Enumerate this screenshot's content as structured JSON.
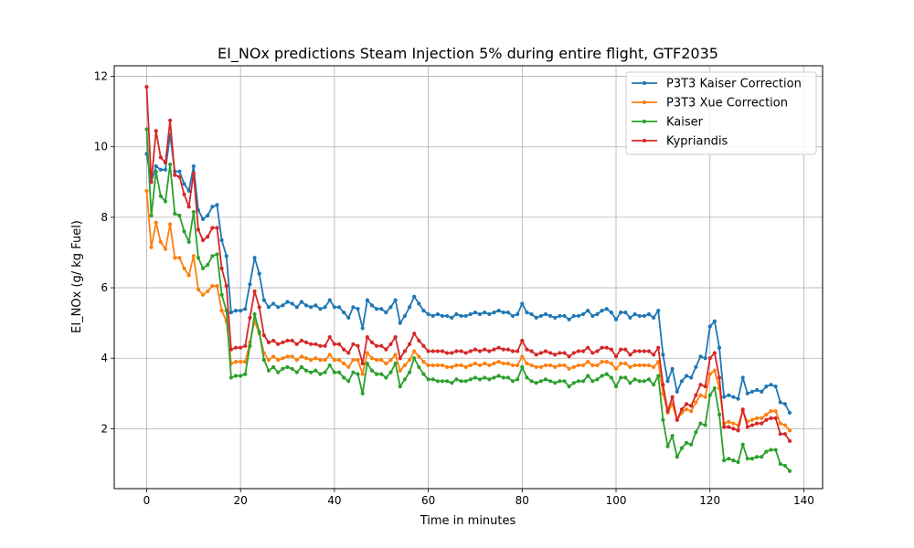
{
  "chart_data": {
    "type": "line",
    "title": "EI_NOx predictions Steam Injection 5% during entire flight, GTF2035",
    "xlabel": "Time in minutes",
    "ylabel": "EI_NOx (g/ kg Fuel)",
    "xlim": [
      -6.9,
      144.0
    ],
    "ylim": [
      0.3,
      12.3
    ],
    "xticks": [
      0,
      20,
      40,
      60,
      80,
      100,
      120,
      140
    ],
    "yticks": [
      2,
      4,
      6,
      8,
      10,
      12
    ],
    "grid": true,
    "legend_position": "top-right",
    "series": [
      {
        "name": "P3T3 Kaiser Correction",
        "color": "#1f77b4",
        "x": [
          0,
          1,
          2,
          3,
          4,
          5,
          6,
          7,
          8,
          9,
          10,
          11,
          12,
          13,
          14,
          15,
          16,
          17,
          18,
          19,
          20,
          21,
          22,
          23,
          24,
          25,
          26,
          27,
          28,
          29,
          30,
          31,
          32,
          33,
          34,
          35,
          36,
          37,
          38,
          39,
          40,
          41,
          42,
          43,
          44,
          45,
          46,
          47,
          48,
          49,
          50,
          51,
          52,
          53,
          54,
          55,
          56,
          57,
          58,
          59,
          60,
          61,
          62,
          63,
          64,
          65,
          66,
          67,
          68,
          69,
          70,
          71,
          72,
          73,
          74,
          75,
          76,
          77,
          78,
          79,
          80,
          81,
          82,
          83,
          84,
          85,
          86,
          87,
          88,
          89,
          90,
          91,
          92,
          93,
          94,
          95,
          96,
          97,
          98,
          99,
          100,
          101,
          102,
          103,
          104,
          105,
          106,
          107,
          108,
          109,
          110,
          111,
          112,
          113,
          114,
          115,
          116,
          117,
          118,
          119,
          120,
          121,
          122,
          123,
          124,
          125,
          126,
          127,
          128,
          129,
          130,
          131,
          132,
          133,
          134,
          135,
          136,
          137
        ],
        "y": [
          9.8,
          9.0,
          9.45,
          9.35,
          9.35,
          10.35,
          9.3,
          9.3,
          8.95,
          8.75,
          9.45,
          8.2,
          7.95,
          8.05,
          8.3,
          8.35,
          7.35,
          6.9,
          5.3,
          5.35,
          5.35,
          5.4,
          6.1,
          6.85,
          6.4,
          5.65,
          5.45,
          5.55,
          5.45,
          5.5,
          5.6,
          5.55,
          5.45,
          5.6,
          5.5,
          5.45,
          5.5,
          5.4,
          5.45,
          5.65,
          5.45,
          5.45,
          5.3,
          5.15,
          5.45,
          5.4,
          4.85,
          5.65,
          5.5,
          5.4,
          5.4,
          5.3,
          5.45,
          5.65,
          5.0,
          5.2,
          5.45,
          5.75,
          5.55,
          5.35,
          5.25,
          5.2,
          5.25,
          5.2,
          5.2,
          5.15,
          5.25,
          5.2,
          5.2,
          5.25,
          5.3,
          5.25,
          5.3,
          5.25,
          5.3,
          5.35,
          5.3,
          5.3,
          5.2,
          5.25,
          5.55,
          5.3,
          5.25,
          5.15,
          5.2,
          5.25,
          5.2,
          5.15,
          5.2,
          5.2,
          5.1,
          5.2,
          5.2,
          5.25,
          5.35,
          5.2,
          5.25,
          5.35,
          5.4,
          5.3,
          5.1,
          5.3,
          5.3,
          5.15,
          5.25,
          5.2,
          5.2,
          5.25,
          5.15,
          5.35,
          4.1,
          3.35,
          3.7,
          3.05,
          3.35,
          3.5,
          3.45,
          3.75,
          4.05,
          4.0,
          4.9,
          5.05,
          4.3,
          2.9,
          2.95,
          2.9,
          2.85,
          3.45,
          3.0,
          3.05,
          3.1,
          3.05,
          3.2,
          3.25,
          3.2,
          2.75,
          2.7,
          2.45
        ]
      },
      {
        "name": "P3T3 Xue Correction",
        "color": "#ff7f0e",
        "x": [
          0,
          1,
          2,
          3,
          4,
          5,
          6,
          7,
          8,
          9,
          10,
          11,
          12,
          13,
          14,
          15,
          16,
          17,
          18,
          19,
          20,
          21,
          22,
          23,
          24,
          25,
          26,
          27,
          28,
          29,
          30,
          31,
          32,
          33,
          34,
          35,
          36,
          37,
          38,
          39,
          40,
          41,
          42,
          43,
          44,
          45,
          46,
          47,
          48,
          49,
          50,
          51,
          52,
          53,
          54,
          55,
          56,
          57,
          58,
          59,
          60,
          61,
          62,
          63,
          64,
          65,
          66,
          67,
          68,
          69,
          70,
          71,
          72,
          73,
          74,
          75,
          76,
          77,
          78,
          79,
          80,
          81,
          82,
          83,
          84,
          85,
          86,
          87,
          88,
          89,
          90,
          91,
          92,
          93,
          94,
          95,
          96,
          97,
          98,
          99,
          100,
          101,
          102,
          103,
          104,
          105,
          106,
          107,
          108,
          109,
          110,
          111,
          112,
          113,
          114,
          115,
          116,
          117,
          118,
          119,
          120,
          121,
          122,
          123,
          124,
          125,
          126,
          127,
          128,
          129,
          130,
          131,
          132,
          133,
          134,
          135,
          136,
          137
        ],
        "y": [
          8.75,
          7.15,
          7.85,
          7.3,
          7.1,
          7.8,
          6.85,
          6.85,
          6.55,
          6.35,
          6.9,
          5.95,
          5.8,
          5.9,
          6.05,
          6.05,
          5.35,
          5.05,
          3.85,
          3.9,
          3.9,
          3.9,
          4.45,
          5.05,
          4.7,
          4.15,
          3.95,
          4.05,
          3.95,
          4.0,
          4.05,
          4.05,
          3.95,
          4.05,
          4.0,
          3.95,
          4.0,
          3.95,
          3.95,
          4.1,
          3.95,
          3.95,
          3.85,
          3.75,
          3.95,
          3.95,
          3.55,
          4.15,
          4.0,
          3.95,
          3.95,
          3.85,
          3.95,
          4.1,
          3.65,
          3.8,
          3.95,
          4.2,
          4.05,
          3.9,
          3.8,
          3.8,
          3.8,
          3.8,
          3.75,
          3.75,
          3.8,
          3.8,
          3.75,
          3.8,
          3.85,
          3.8,
          3.85,
          3.8,
          3.85,
          3.9,
          3.85,
          3.85,
          3.8,
          3.8,
          4.05,
          3.85,
          3.8,
          3.75,
          3.75,
          3.8,
          3.8,
          3.75,
          3.8,
          3.8,
          3.7,
          3.75,
          3.8,
          3.8,
          3.9,
          3.8,
          3.8,
          3.9,
          3.9,
          3.85,
          3.7,
          3.85,
          3.85,
          3.75,
          3.8,
          3.8,
          3.8,
          3.8,
          3.75,
          3.9,
          3.0,
          2.45,
          2.7,
          2.25,
          2.45,
          2.55,
          2.5,
          2.75,
          2.95,
          2.9,
          3.55,
          3.65,
          3.15,
          2.15,
          2.2,
          2.15,
          2.1,
          2.5,
          2.2,
          2.25,
          2.3,
          2.3,
          2.4,
          2.5,
          2.5,
          2.15,
          2.1,
          1.95
        ]
      },
      {
        "name": "Kaiser",
        "color": "#2ca02c",
        "x": [
          0,
          1,
          2,
          3,
          4,
          5,
          6,
          7,
          8,
          9,
          10,
          11,
          12,
          13,
          14,
          15,
          16,
          17,
          18,
          19,
          20,
          21,
          22,
          23,
          24,
          25,
          26,
          27,
          28,
          29,
          30,
          31,
          32,
          33,
          34,
          35,
          36,
          37,
          38,
          39,
          40,
          41,
          42,
          43,
          44,
          45,
          46,
          47,
          48,
          49,
          50,
          51,
          52,
          53,
          54,
          55,
          56,
          57,
          58,
          59,
          60,
          61,
          62,
          63,
          64,
          65,
          66,
          67,
          68,
          69,
          70,
          71,
          72,
          73,
          74,
          75,
          76,
          77,
          78,
          79,
          80,
          81,
          82,
          83,
          84,
          85,
          86,
          87,
          88,
          89,
          90,
          91,
          92,
          93,
          94,
          95,
          96,
          97,
          98,
          99,
          100,
          101,
          102,
          103,
          104,
          105,
          106,
          107,
          108,
          109,
          110,
          111,
          112,
          113,
          114,
          115,
          116,
          117,
          118,
          119,
          120,
          121,
          122,
          123,
          124,
          125,
          126,
          127,
          128,
          129,
          130,
          131,
          132,
          133,
          134,
          135,
          136,
          137
        ],
        "y": [
          10.5,
          8.05,
          9.3,
          8.6,
          8.45,
          9.5,
          8.1,
          8.05,
          7.6,
          7.3,
          8.15,
          6.85,
          6.55,
          6.65,
          6.9,
          6.95,
          5.8,
          5.35,
          3.45,
          3.5,
          3.5,
          3.55,
          4.35,
          5.25,
          4.75,
          3.95,
          3.65,
          3.75,
          3.6,
          3.7,
          3.75,
          3.7,
          3.6,
          3.75,
          3.65,
          3.6,
          3.65,
          3.55,
          3.6,
          3.8,
          3.6,
          3.6,
          3.45,
          3.35,
          3.6,
          3.55,
          3.0,
          3.85,
          3.65,
          3.55,
          3.55,
          3.45,
          3.6,
          3.85,
          3.2,
          3.4,
          3.6,
          4.0,
          3.75,
          3.55,
          3.4,
          3.4,
          3.35,
          3.35,
          3.35,
          3.3,
          3.4,
          3.35,
          3.35,
          3.4,
          3.45,
          3.4,
          3.45,
          3.4,
          3.45,
          3.5,
          3.45,
          3.45,
          3.35,
          3.4,
          3.75,
          3.45,
          3.35,
          3.3,
          3.35,
          3.4,
          3.35,
          3.3,
          3.35,
          3.35,
          3.2,
          3.3,
          3.35,
          3.35,
          3.5,
          3.35,
          3.4,
          3.5,
          3.55,
          3.45,
          3.2,
          3.45,
          3.45,
          3.3,
          3.4,
          3.35,
          3.35,
          3.4,
          3.25,
          3.5,
          2.25,
          1.5,
          1.8,
          1.2,
          1.45,
          1.6,
          1.55,
          1.9,
          2.15,
          2.1,
          2.95,
          3.15,
          2.4,
          1.1,
          1.15,
          1.1,
          1.05,
          1.55,
          1.15,
          1.15,
          1.2,
          1.2,
          1.35,
          1.4,
          1.4,
          1.0,
          0.95,
          0.8
        ]
      },
      {
        "name": "Kypriandis",
        "color": "#d62728",
        "x": [
          0,
          1,
          2,
          3,
          4,
          5,
          6,
          7,
          8,
          9,
          10,
          11,
          12,
          13,
          14,
          15,
          16,
          17,
          18,
          19,
          20,
          21,
          22,
          23,
          24,
          25,
          26,
          27,
          28,
          29,
          30,
          31,
          32,
          33,
          34,
          35,
          36,
          37,
          38,
          39,
          40,
          41,
          42,
          43,
          44,
          45,
          46,
          47,
          48,
          49,
          50,
          51,
          52,
          53,
          54,
          55,
          56,
          57,
          58,
          59,
          60,
          61,
          62,
          63,
          64,
          65,
          66,
          67,
          68,
          69,
          70,
          71,
          72,
          73,
          74,
          75,
          76,
          77,
          78,
          79,
          80,
          81,
          82,
          83,
          84,
          85,
          86,
          87,
          88,
          89,
          90,
          91,
          92,
          93,
          94,
          95,
          96,
          97,
          98,
          99,
          100,
          101,
          102,
          103,
          104,
          105,
          106,
          107,
          108,
          109,
          110,
          111,
          112,
          113,
          114,
          115,
          116,
          117,
          118,
          119,
          120,
          121,
          122,
          123,
          124,
          125,
          126,
          127,
          128,
          129,
          130,
          131,
          132,
          133,
          134,
          135,
          136,
          137
        ],
        "y": [
          11.7,
          9.0,
          10.45,
          9.7,
          9.55,
          10.75,
          9.2,
          9.15,
          8.65,
          8.3,
          9.25,
          7.65,
          7.35,
          7.45,
          7.7,
          7.7,
          6.55,
          6.05,
          4.25,
          4.3,
          4.3,
          4.35,
          5.15,
          5.9,
          5.45,
          4.65,
          4.45,
          4.5,
          4.4,
          4.45,
          4.5,
          4.5,
          4.4,
          4.5,
          4.45,
          4.4,
          4.4,
          4.35,
          4.35,
          4.6,
          4.4,
          4.4,
          4.25,
          4.15,
          4.4,
          4.35,
          3.85,
          4.6,
          4.45,
          4.35,
          4.35,
          4.25,
          4.4,
          4.6,
          4.0,
          4.2,
          4.4,
          4.7,
          4.5,
          4.35,
          4.2,
          4.2,
          4.2,
          4.2,
          4.15,
          4.15,
          4.2,
          4.2,
          4.15,
          4.2,
          4.25,
          4.2,
          4.25,
          4.2,
          4.25,
          4.3,
          4.25,
          4.25,
          4.2,
          4.2,
          4.5,
          4.25,
          4.2,
          4.1,
          4.15,
          4.2,
          4.15,
          4.1,
          4.15,
          4.15,
          4.05,
          4.15,
          4.2,
          4.2,
          4.3,
          4.15,
          4.2,
          4.3,
          4.3,
          4.25,
          4.05,
          4.25,
          4.25,
          4.1,
          4.2,
          4.2,
          4.2,
          4.2,
          4.1,
          4.3,
          3.25,
          2.5,
          2.9,
          2.25,
          2.55,
          2.7,
          2.65,
          2.95,
          3.25,
          3.2,
          4.0,
          4.15,
          3.45,
          2.05,
          2.05,
          2.0,
          1.95,
          2.55,
          2.05,
          2.1,
          2.15,
          2.15,
          2.25,
          2.3,
          2.3,
          1.85,
          1.85,
          1.65
        ]
      }
    ]
  }
}
